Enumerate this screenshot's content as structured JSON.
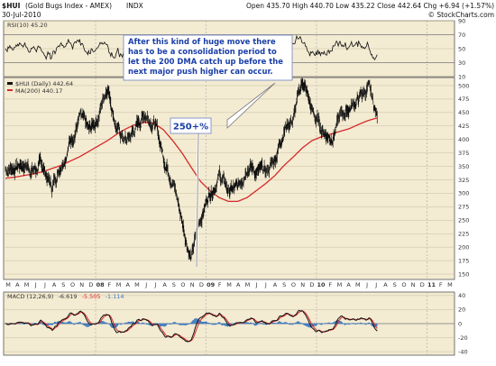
{
  "header": {
    "symbol": "$HUI",
    "name": "(Gold Bugs Index - AMEX)",
    "exch": "INDX",
    "date": "30-Jul-2010",
    "quote": "Open 435.70  High 440.70  Low 435.22  Close 442.64  Chg +6.94 (+1.57%)",
    "credit": "© StockCharts.com"
  },
  "rsi": {
    "label": "RSI(10) 45.20",
    "ticks": [
      "90",
      "70",
      "50",
      "30",
      "10"
    ]
  },
  "price": {
    "legend_main": "$HUI (Daily) 442.64",
    "legend_ma": "MA(200) 440.17",
    "ticks": [
      "500",
      "475",
      "450",
      "425",
      "400",
      "375",
      "350",
      "325",
      "300",
      "275",
      "250",
      "225",
      "200",
      "175",
      "150"
    ]
  },
  "macd": {
    "label": "MACD (12,26,9)",
    "v1": "-6.619",
    "v2": "-5.505",
    "v3": "-1.114",
    "ticks": [
      "40",
      "20",
      "0",
      "-20",
      "-40"
    ]
  },
  "annotations": {
    "note": "After this kind of huge move there has to be a consolidation period to let the 200 DMA catch up before the next major push higher can occur.",
    "note_lines": [
      "After this kind of huge move there",
      "has to be a consolidation period to",
      "let the 200 DMA catch up before the",
      "next major push higher can occur."
    ],
    "pct": "250+%"
  },
  "xaxis": {
    "months": [
      "M",
      "A",
      "M",
      "J",
      "J",
      "A",
      "S",
      "O",
      "N",
      "D",
      "08",
      "F",
      "M",
      "A",
      "M",
      "J",
      "J",
      "A",
      "S",
      "O",
      "N",
      "D",
      "09",
      "F",
      "M",
      "A",
      "M",
      "J",
      "J",
      "A",
      "S",
      "O",
      "N",
      "D",
      "10",
      "F",
      "M",
      "A",
      "M",
      "J",
      "J",
      "A",
      "S",
      "O",
      "N",
      "D",
      "11",
      "F",
      "M"
    ]
  },
  "colors": {
    "panel_bg": "#f3ebd2",
    "price": "#111111",
    "ma": "#d6282a",
    "macd_line": "#111111",
    "signal": "#d6282a",
    "histogram": "#3a78c0",
    "note_text": "#1a3ea8",
    "note_border": "#6f83c4"
  },
  "chart_data": {
    "type": "line",
    "title": "$HUI (Gold Bugs Index - AMEX) INDX",
    "x": [
      "2007-03",
      "2007-04",
      "2007-05",
      "2007-06",
      "2007-07",
      "2007-08",
      "2007-09",
      "2007-10",
      "2007-11",
      "2007-12",
      "2008-01",
      "2008-02",
      "2008-03",
      "2008-04",
      "2008-05",
      "2008-06",
      "2008-07",
      "2008-08",
      "2008-09",
      "2008-10",
      "2008-11",
      "2008-12",
      "2009-01",
      "2009-02",
      "2009-03",
      "2009-04",
      "2009-05",
      "2009-06",
      "2009-07",
      "2009-08",
      "2009-09",
      "2009-10",
      "2009-11",
      "2009-12",
      "2010-01",
      "2010-02",
      "2010-03",
      "2010-04",
      "2010-05",
      "2010-06",
      "2010-07"
    ],
    "series": [
      {
        "name": "$HUI (Daily)",
        "values": [
          345,
          350,
          355,
          345,
          350,
          310,
          360,
          400,
          440,
          410,
          445,
          505,
          420,
          395,
          420,
          450,
          435,
          370,
          330,
          250,
          180,
          255,
          305,
          335,
          305,
          305,
          360,
          340,
          335,
          365,
          425,
          440,
          510,
          450,
          420,
          405,
          440,
          460,
          475,
          495,
          442
        ]
      },
      {
        "name": "MA(200)",
        "values": [
          328,
          330,
          333,
          336,
          340,
          346,
          352,
          360,
          368,
          378,
          388,
          398,
          410,
          420,
          428,
          432,
          430,
          418,
          398,
          375,
          348,
          322,
          305,
          292,
          285,
          285,
          292,
          305,
          318,
          333,
          352,
          368,
          385,
          398,
          405,
          410,
          415,
          420,
          428,
          435,
          440
        ]
      }
    ],
    "ylim": [
      140,
      515
    ],
    "rsi": {
      "label": "RSI(10)",
      "last": 45.2,
      "ylim": [
        10,
        90
      ],
      "levels": [
        70,
        30
      ]
    },
    "macd": {
      "params": "12,26,9",
      "macd": -6.619,
      "signal": -5.505,
      "histogram": -1.114,
      "ylim": [
        -45,
        45
      ]
    }
  }
}
